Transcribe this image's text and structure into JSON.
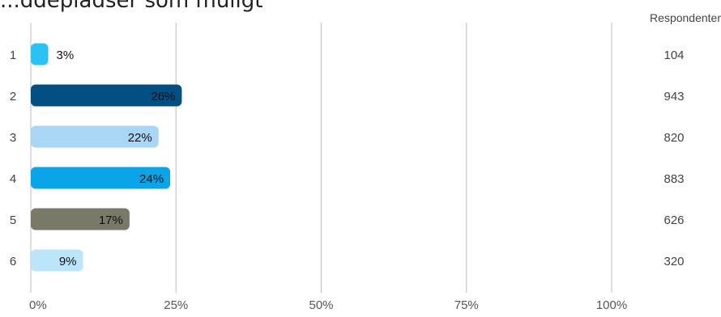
{
  "chart_data": {
    "type": "bar",
    "orientation": "horizontal",
    "title": "...ddepladser som muligt",
    "categories": [
      "1",
      "2",
      "3",
      "4",
      "5",
      "6"
    ],
    "values": [
      3,
      26,
      22,
      24,
      17,
      9
    ],
    "value_labels": [
      "3%",
      "26%",
      "22%",
      "24%",
      "17%",
      "9%"
    ],
    "respondents_header": "Respondenter",
    "respondents": [
      "104",
      "943",
      "820",
      "883",
      "626",
      "320"
    ],
    "xlim": [
      0,
      100
    ],
    "x_ticks": [
      0,
      25,
      50,
      75,
      100
    ],
    "x_tick_labels": [
      "0%",
      "25%",
      "50%",
      "75%",
      "100%"
    ],
    "grid": true,
    "bar_colors": [
      "#29c2f2",
      "#034f84",
      "#a9d6f5",
      "#0aa4e8",
      "#7a7866",
      "#bde5fa"
    ]
  }
}
